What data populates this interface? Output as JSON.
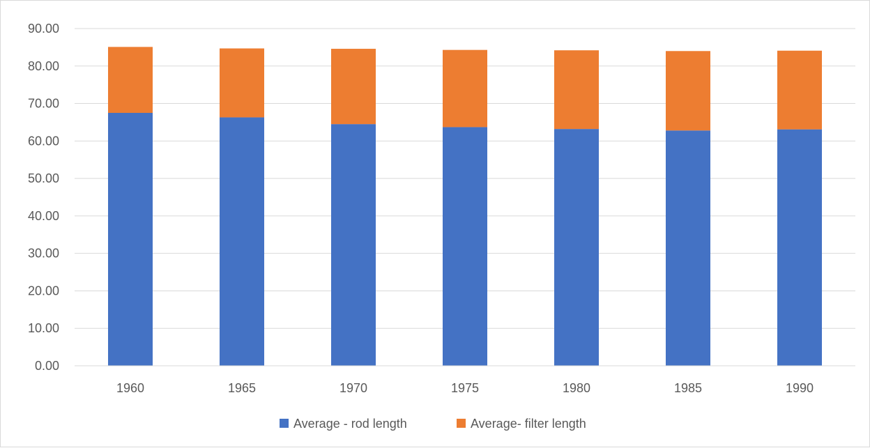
{
  "chart_data": {
    "type": "bar",
    "stacked": true,
    "title": "",
    "xlabel": "",
    "ylabel": "",
    "categories": [
      "1960",
      "1965",
      "1970",
      "1975",
      "1980",
      "1985",
      "1990"
    ],
    "series": [
      {
        "name": "Average - rod length",
        "color": "#4472c4",
        "values": [
          67.5,
          66.3,
          64.5,
          63.7,
          63.2,
          62.8,
          63.1
        ]
      },
      {
        "name": "Average- filter length",
        "color": "#ed7d31",
        "values": [
          17.6,
          18.4,
          20.1,
          20.6,
          21.0,
          21.2,
          21.0
        ]
      }
    ],
    "ylim": [
      0,
      90
    ],
    "yticks": [
      "0.00",
      "10.00",
      "20.00",
      "30.00",
      "40.00",
      "50.00",
      "60.00",
      "70.00",
      "80.00",
      "90.00"
    ],
    "ytick_values": [
      0,
      10,
      20,
      30,
      40,
      50,
      60,
      70,
      80,
      90
    ],
    "grid": true,
    "gridline_color": "#d9d9d9",
    "legend_position": "bottom"
  }
}
